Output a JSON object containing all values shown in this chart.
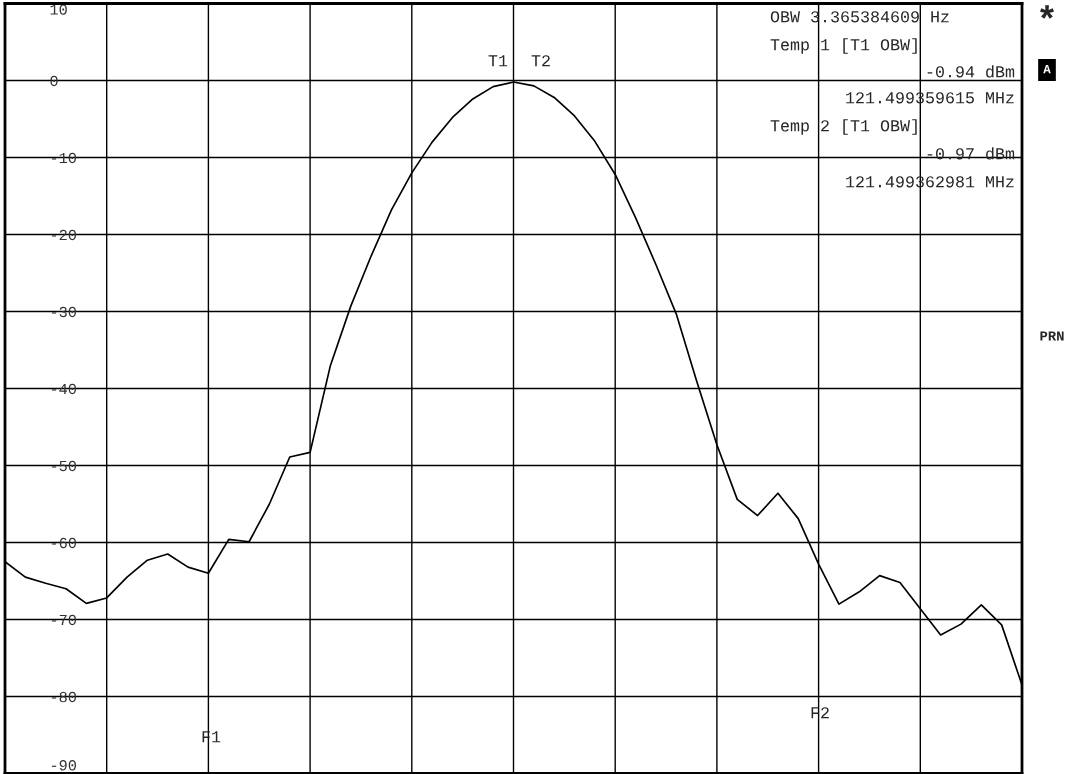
{
  "chart_data": {
    "type": "line",
    "categories": [
      null,
      null,
      null,
      null,
      null,
      null,
      null,
      null,
      null,
      null,
      null,
      null,
      null,
      null,
      null,
      null,
      null,
      null,
      null,
      null,
      null,
      null,
      null,
      null,
      null,
      null,
      null,
      null,
      null,
      null,
      null,
      null,
      null,
      null,
      null,
      null,
      null,
      null,
      null,
      null,
      null,
      null,
      null,
      null,
      null,
      null,
      null,
      null,
      null,
      null,
      null
    ],
    "series": [
      {
        "color": "#000000",
        "values": [
          -62.5,
          -64.5,
          -65.3,
          -66.0,
          -67.9,
          -67.2,
          -64.5,
          -62.3,
          -61.5,
          -63.2,
          -64.0,
          -59.6,
          -59.9,
          -55.0,
          -48.9,
          -48.3,
          -37.0,
          -29.3,
          -22.8,
          -16.8,
          -12.0,
          -8.0,
          -4.8,
          -2.4,
          -0.8,
          -0.2,
          -0.7,
          -2.2,
          -4.6,
          -7.9,
          -12.2,
          -17.8,
          -23.9,
          -30.3,
          -39.0,
          -47.3,
          -54.4,
          -56.5,
          -53.6,
          -56.9,
          -62.8,
          -68.0,
          -66.4,
          -64.3,
          -65.2,
          -68.6,
          -72.0,
          -70.6,
          -68.1,
          -70.7,
          -78.5
        ]
      }
    ],
    "ylim": [
      -90,
      10
    ],
    "yticks": [
      10,
      0,
      -10,
      -20,
      -30,
      -40,
      -50,
      -60,
      -70,
      -80,
      -90
    ],
    "grid": true,
    "tick_labels": "y",
    "marker": "none",
    "line_style": "solid",
    "annotations": [
      "OBW 3.365384609 Hz",
      "Temp 1 [T1 OBW]",
      "-0.94 dBm",
      "121.499359615 MHz",
      "Temp 2 [T1 OBW]",
      "-0.97 dBm",
      "121.499362981 MHz",
      "T1",
      "T2",
      "F1",
      "F2",
      "*",
      "A",
      "PRN"
    ]
  }
}
